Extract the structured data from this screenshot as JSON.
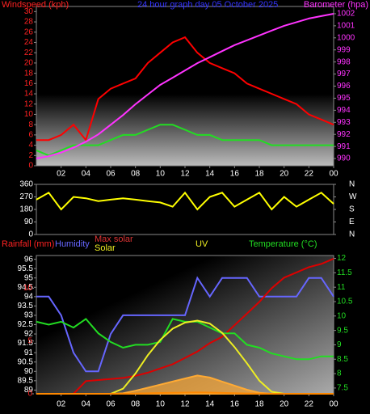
{
  "chart_data": [
    {
      "type": "line",
      "title": "24 hour graph day  05 October 2025",
      "ylabel": "Windspeed (kph)",
      "y2label": "Barometer (hpa)",
      "x": [
        0,
        1,
        2,
        3,
        4,
        5,
        6,
        7,
        8,
        9,
        10,
        11,
        12,
        13,
        14,
        15,
        16,
        17,
        18,
        19,
        20,
        21,
        22,
        23,
        24
      ],
      "xlim": [
        0,
        24
      ],
      "xticks": [
        {
          "value": 2,
          "label": "02"
        },
        {
          "value": 4,
          "label": "04"
        },
        {
          "value": 6,
          "label": "06"
        },
        {
          "value": 8,
          "label": "08"
        },
        10,
        12,
        14,
        16,
        18,
        20,
        22,
        {
          "value": 24,
          "label": "00"
        }
      ],
      "ylim": [
        0,
        31
      ],
      "yticks": [
        0,
        2,
        4,
        6,
        8,
        10,
        12,
        14,
        16,
        18,
        20,
        22,
        24,
        26,
        28,
        30
      ],
      "y2lim": [
        989.4,
        1002.6
      ],
      "y2ticks": [
        990,
        991,
        992,
        993,
        994,
        995,
        996,
        997,
        998,
        999,
        1000,
        1001,
        1002
      ],
      "series": [
        {
          "color": "#ff0000",
          "values": [
            5,
            5,
            6,
            8,
            5,
            13,
            15,
            16,
            17,
            20,
            22,
            24,
            25,
            22,
            20,
            19,
            18,
            16,
            15,
            14,
            13,
            12,
            10,
            9,
            8
          ]
        },
        {
          "color": "#22dd22",
          "values": [
            3,
            2,
            3,
            4,
            4,
            4,
            5,
            6,
            6,
            7,
            8,
            8,
            7,
            6,
            6,
            5,
            5,
            5,
            5,
            4,
            4,
            4,
            4,
            4,
            4
          ]
        },
        {
          "color": "#ff33ff",
          "axis": "y2",
          "values": [
            990,
            990.2,
            990.5,
            990.9,
            991.4,
            992,
            992.8,
            993.6,
            994.5,
            995.3,
            996.1,
            996.7,
            997.3,
            997.9,
            998.4,
            998.9,
            999.4,
            999.8,
            1000.2,
            1000.6,
            1001,
            1001.3,
            1001.6,
            1001.8,
            1002
          ]
        }
      ]
    },
    {
      "type": "line",
      "x": [
        0,
        1,
        2,
        3,
        4,
        5,
        6,
        7,
        8,
        9,
        10,
        11,
        12,
        13,
        14,
        15,
        16,
        17,
        18,
        19,
        20,
        21,
        22,
        23,
        24
      ],
      "xlim": [
        0,
        24
      ],
      "ylim": [
        0,
        360
      ],
      "yticks": [
        0,
        90,
        180,
        270,
        360
      ],
      "y2lim": [
        0,
        360
      ],
      "y2ticks": [
        {
          "value": 0,
          "label": "N"
        },
        {
          "value": 90,
          "label": "E"
        },
        {
          "value": 180,
          "label": "S"
        },
        {
          "value": 270,
          "label": "W"
        },
        {
          "value": 360,
          "label": "N"
        }
      ],
      "series": [
        {
          "color": "#ffff00",
          "values": [
            250,
            300,
            180,
            270,
            260,
            240,
            250,
            260,
            250,
            240,
            230,
            200,
            300,
            180,
            270,
            300,
            200,
            250,
            300,
            180,
            270,
            200,
            250,
            300,
            220
          ]
        }
      ]
    },
    {
      "type": "line",
      "ylabel": "Humidity",
      "y2label": "Temperature (°C)",
      "y3label": "Rainfall (mm)",
      "y4label": "Max solar",
      "y5label": "Solar",
      "y6label": "UV",
      "x": [
        0,
        1,
        2,
        3,
        4,
        5,
        6,
        7,
        8,
        9,
        10,
        11,
        12,
        13,
        14,
        15,
        16,
        17,
        18,
        19,
        20,
        21,
        22,
        23,
        24
      ],
      "xlim": [
        0,
        24
      ],
      "xticks": [
        {
          "value": 2,
          "label": "02"
        },
        {
          "value": 4,
          "label": "04"
        },
        {
          "value": 6,
          "label": "06"
        },
        {
          "value": 8,
          "label": "08"
        },
        10,
        12,
        14,
        16,
        18,
        20,
        22,
        {
          "value": 24,
          "label": "00"
        }
      ],
      "ylim": [
        88.8,
        96.2
      ],
      "yticks": [
        89,
        89.5,
        90,
        90.5,
        91,
        91.5,
        92,
        92.5,
        93,
        93.5,
        94,
        94.5,
        95,
        95.5,
        96
      ],
      "y2lim": [
        7.3,
        12.1
      ],
      "y2ticks": [
        7.5,
        8,
        8.5,
        9,
        9.5,
        10,
        10.5,
        11,
        11.5,
        12
      ],
      "y3lim": [
        0,
        13.1
      ],
      "y3ticks": [
        0,
        5,
        10
      ],
      "y4lim": [
        0,
        1360
      ],
      "series": [
        {
          "color": "#6666ff",
          "values": [
            94,
            94,
            93,
            91,
            90,
            90,
            92,
            93,
            93,
            93,
            93,
            93,
            93,
            95,
            94,
            95,
            95,
            95,
            94,
            94,
            94,
            94,
            95,
            95,
            94
          ]
        },
        {
          "color": "#dd0000",
          "axis": "y3",
          "values": [
            0,
            0,
            0,
            0,
            1.2,
            1.3,
            1.4,
            1.5,
            1.7,
            2.0,
            2.4,
            2.8,
            3.4,
            4.0,
            4.8,
            5.4,
            6.5,
            7.6,
            8.7,
            10,
            11,
            11.5,
            12,
            12.3,
            12.8
          ]
        },
        {
          "color": "#22dd22",
          "axis": "y2",
          "values": [
            9.8,
            9.7,
            9.8,
            9.6,
            9.9,
            9.4,
            9.1,
            8.9,
            9.0,
            9.0,
            9.1,
            9.9,
            9.8,
            9.8,
            9.6,
            9.4,
            9.4,
            9.0,
            8.9,
            8.7,
            8.6,
            8.5,
            8.5,
            8.6,
            8.6
          ]
        },
        {
          "color": "#eeee22",
          "axis": "y4",
          "values": [
            0,
            0,
            0,
            0,
            0,
            0,
            0,
            50,
            200,
            380,
            530,
            640,
            700,
            720,
            690,
            600,
            460,
            300,
            130,
            20,
            0,
            0,
            0,
            0,
            0
          ]
        },
        {
          "color": "#ffaa33",
          "axis": "y4",
          "fill": true,
          "values": [
            0,
            0,
            0,
            0,
            0,
            0,
            0,
            5,
            30,
            60,
            90,
            120,
            150,
            180,
            160,
            120,
            80,
            40,
            10,
            0,
            0,
            0,
            0,
            0,
            0
          ]
        },
        {
          "color": "#ff8800",
          "axis": "y4",
          "values": [
            0,
            0,
            0,
            0,
            0,
            0,
            0,
            0,
            2,
            5,
            8,
            10,
            12,
            14,
            12,
            9,
            6,
            3,
            1,
            0,
            0,
            0,
            0,
            0,
            0
          ]
        }
      ]
    }
  ]
}
